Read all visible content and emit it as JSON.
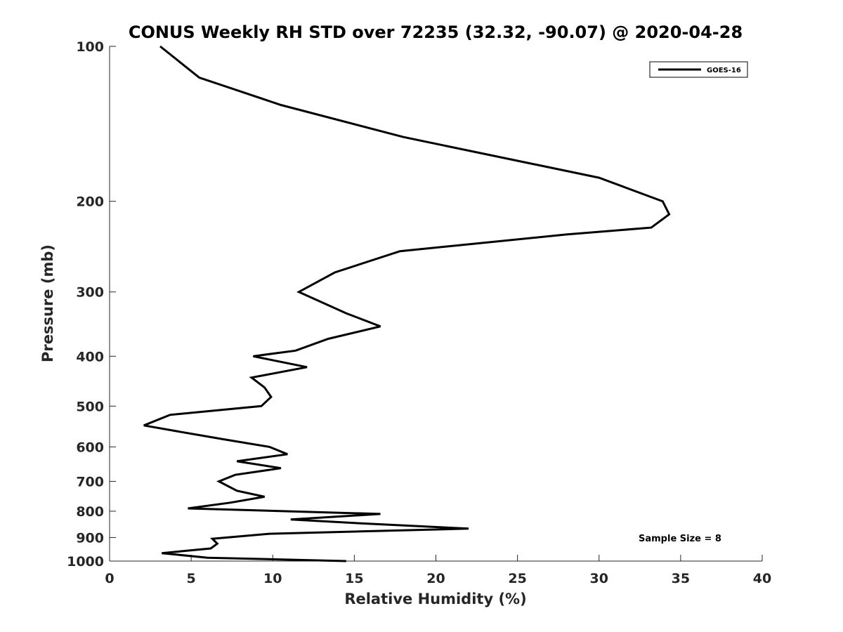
{
  "chart_data": {
    "type": "line",
    "title": "CONUS Weekly RH STD over 72235 (32.32, -90.07) @ 2020-04-28",
    "xlabel": "Relative Humidity (%)",
    "ylabel": "Pressure (mb)",
    "xlim": [
      0,
      40
    ],
    "ylim": [
      100,
      1000
    ],
    "y_scale": "log",
    "y_inverted": true,
    "x_ticks": [
      0,
      5,
      10,
      15,
      20,
      25,
      30,
      35,
      40
    ],
    "y_ticks": [
      100,
      200,
      300,
      400,
      500,
      600,
      700,
      800,
      900,
      1000
    ],
    "grid": false,
    "legend_position": "top-right",
    "annotation": "Sample Size = 8",
    "series": [
      {
        "name": "GOES-16",
        "color": "#000000",
        "x": [
          3.1,
          5.5,
          10.5,
          18,
          30,
          33.9,
          34.3,
          33.2,
          28,
          17.8,
          13.8,
          11.6,
          14.5,
          16.6,
          13.4,
          11.4,
          8.8,
          12.1,
          8.7,
          9.5,
          9.9,
          9.3,
          3.7,
          2.1,
          4.2,
          7.0,
          9.8,
          10.9,
          7.8,
          10.5,
          7.7,
          6.7,
          7.8,
          9.5,
          7.4,
          4.8,
          16.6,
          11.1,
          15.5,
          22.0,
          9.8,
          6.3,
          6.6,
          6.2,
          3.2,
          6.0,
          14.5
        ],
        "y": [
          100,
          115,
          130,
          150,
          180,
          200,
          212,
          225,
          232,
          250,
          275,
          300,
          330,
          350,
          370,
          390,
          400,
          420,
          440,
          460,
          480,
          500,
          520,
          545,
          560,
          580,
          600,
          620,
          640,
          660,
          680,
          700,
          730,
          750,
          770,
          790,
          810,
          830,
          845,
          865,
          885,
          905,
          925,
          945,
          965,
          985,
          1000
        ]
      }
    ]
  }
}
